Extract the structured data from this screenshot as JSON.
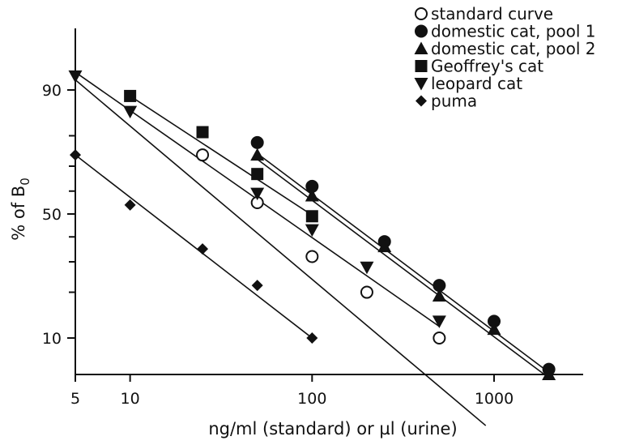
{
  "chart_data": {
    "type": "scatter",
    "title": "",
    "xlabel": "ng/ml (standard) or µl (urine)",
    "ylabel_main": "% of B",
    "ylabel_sub": "0",
    "x_scale": "log",
    "y_scale": "logit",
    "xlim": [
      5,
      3000
    ],
    "x_ticks": [
      5,
      10,
      100,
      1000
    ],
    "x_tick_labels": [
      "5",
      "10",
      "100",
      "1000"
    ],
    "y_ticks_labeled": [
      10,
      50,
      90
    ],
    "y_tick_labels": [
      "10",
      "50",
      "90"
    ],
    "y_ticks_minor": [
      20,
      30,
      40,
      60,
      70,
      80
    ],
    "grid": false,
    "legend_position": "top-right",
    "series": [
      {
        "name": "standard curve",
        "marker": "open-circle",
        "points": [
          [
            25,
            74
          ],
          [
            50,
            55
          ],
          [
            100,
            32
          ],
          [
            200,
            20
          ],
          [
            500,
            10
          ]
        ],
        "fit": [
          [
            5,
            91.5
          ],
          [
            900,
            2.3
          ]
        ]
      },
      {
        "name": "domestic cat, pool 1",
        "marker": "filled-circle",
        "points": [
          [
            50,
            78
          ],
          [
            100,
            62
          ],
          [
            250,
            38
          ],
          [
            500,
            22
          ],
          [
            1000,
            13
          ],
          [
            2000,
            6
          ]
        ],
        "fit": [
          [
            50,
            74.5
          ],
          [
            2000,
            5.7
          ]
        ]
      },
      {
        "name": "domestic cat, pool 2",
        "marker": "filled-triangle-up",
        "points": [
          [
            50,
            74
          ],
          [
            100,
            58
          ],
          [
            250,
            36
          ],
          [
            500,
            19
          ],
          [
            1000,
            11.5
          ],
          [
            2000,
            5.5
          ]
        ],
        "fit": [
          [
            50,
            72.5
          ],
          [
            2000,
            5.2
          ]
        ]
      },
      {
        "name": "Geoffrey's cat",
        "marker": "filled-square",
        "points": [
          [
            10,
            89
          ],
          [
            25,
            81
          ],
          [
            50,
            67
          ],
          [
            100,
            49
          ]
        ],
        "fit": [
          [
            10,
            89
          ],
          [
            100,
            49.5
          ]
        ]
      },
      {
        "name": "leopard cat",
        "marker": "filled-triangle-down",
        "points": [
          [
            5,
            92
          ],
          [
            10,
            86
          ],
          [
            50,
            59
          ],
          [
            100,
            43
          ],
          [
            200,
            28
          ],
          [
            500,
            13
          ]
        ],
        "fit": [
          [
            5,
            92.5
          ],
          [
            500,
            12
          ]
        ]
      },
      {
        "name": "puma",
        "marker": "filled-diamond",
        "points": [
          [
            5,
            74
          ],
          [
            10,
            54
          ],
          [
            25,
            35
          ],
          [
            50,
            22
          ],
          [
            100,
            10
          ]
        ],
        "fit": [
          [
            5,
            74
          ],
          [
            100,
            10
          ]
        ]
      }
    ]
  }
}
